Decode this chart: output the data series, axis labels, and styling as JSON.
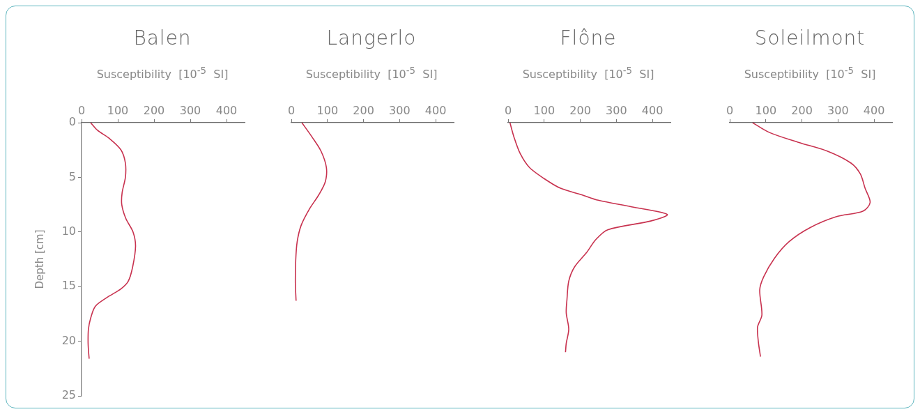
{
  "chart_data": [
    {
      "type": "line",
      "title": "Balen",
      "xlabel": "Susceptibility  [10$^{-5}$  SI]",
      "ylabel": "Depth [cm]",
      "xlim": [
        0,
        450
      ],
      "xticks": [
        0,
        100,
        200,
        300,
        400
      ],
      "ylim": [
        25,
        0
      ],
      "yticks": [
        0,
        5,
        10,
        15,
        20,
        25
      ],
      "marker": "none",
      "series": [
        {
          "color": "#c8324f",
          "x": [
            25,
            44,
            77,
            109,
            121,
            121,
            112,
            111,
            122,
            142,
            149,
            141,
            129,
            109,
            70,
            38,
            25,
            19,
            18,
            19,
            21
          ],
          "values": [
            0,
            0.7,
            1.45,
            2.5,
            3.7,
            5,
            6.4,
            7.5,
            8.75,
            10,
            11.3,
            13.2,
            14.5,
            15.2,
            16,
            16.8,
            17.9,
            18.9,
            20,
            20.8,
            21.6
          ]
        }
      ]
    },
    {
      "type": "line",
      "title": "Langerlo",
      "xlabel": "Susceptibility  [10$^{-5}$  SI]",
      "xlim": [
        0,
        450
      ],
      "xticks": [
        0,
        100,
        200,
        300,
        400
      ],
      "ylim": [
        25,
        0
      ],
      "tick_labels": "x",
      "marker": "none",
      "series": [
        {
          "color": "#c8324f",
          "x": [
            29,
            57,
            82,
            97,
            94,
            76,
            50,
            27,
            16,
            12,
            11,
            13
          ],
          "values": [
            0,
            1.3,
            2.6,
            4.1,
            5.4,
            6.6,
            7.9,
            9.4,
            10.9,
            12.6,
            14.7,
            16.3
          ]
        }
      ]
    },
    {
      "type": "line",
      "title": "Flône",
      "xlabel": "Susceptibility  [10$^{-5}$  SI]",
      "xlim": [
        0,
        450
      ],
      "xticks": [
        0,
        100,
        200,
        300,
        400
      ],
      "ylim": [
        25,
        0
      ],
      "tick_labels": "x",
      "marker": "none",
      "series": [
        {
          "color": "#c8324f",
          "x": [
            5,
            16,
            33,
            59,
            99,
            145,
            204,
            250,
            342,
            441,
            395,
            276,
            243,
            217,
            184,
            168,
            163,
            161,
            168,
            161,
            159
          ],
          "values": [
            0,
            1.3,
            2.8,
            4.1,
            5.1,
            6,
            6.6,
            7.1,
            7.7,
            8.4,
            9,
            9.8,
            10.7,
            11.9,
            13.2,
            14.5,
            16.2,
            17.4,
            18.9,
            20.2,
            21
          ]
        }
      ]
    },
    {
      "type": "line",
      "title": "Soleilmont",
      "xlabel": "Susceptibility  [10$^{-5}$  SI]",
      "xlim": [
        0,
        450
      ],
      "xticks": [
        0,
        100,
        200,
        300,
        400
      ],
      "ylim": [
        25,
        0
      ],
      "tick_labels": "x",
      "marker": "none",
      "series": [
        {
          "color": "#c8324f",
          "x": [
            63,
            110,
            190,
            270,
            336,
            362,
            375,
            389,
            369,
            296,
            223,
            164,
            124,
            94,
            83,
            89,
            77,
            79,
            85
          ],
          "values": [
            0,
            0.9,
            1.8,
            2.6,
            3.7,
            4.7,
            6,
            7.3,
            8.1,
            8.6,
            9.6,
            10.9,
            12.4,
            14.1,
            15.3,
            17.6,
            18.7,
            20,
            21.4
          ]
        }
      ]
    }
  ]
}
